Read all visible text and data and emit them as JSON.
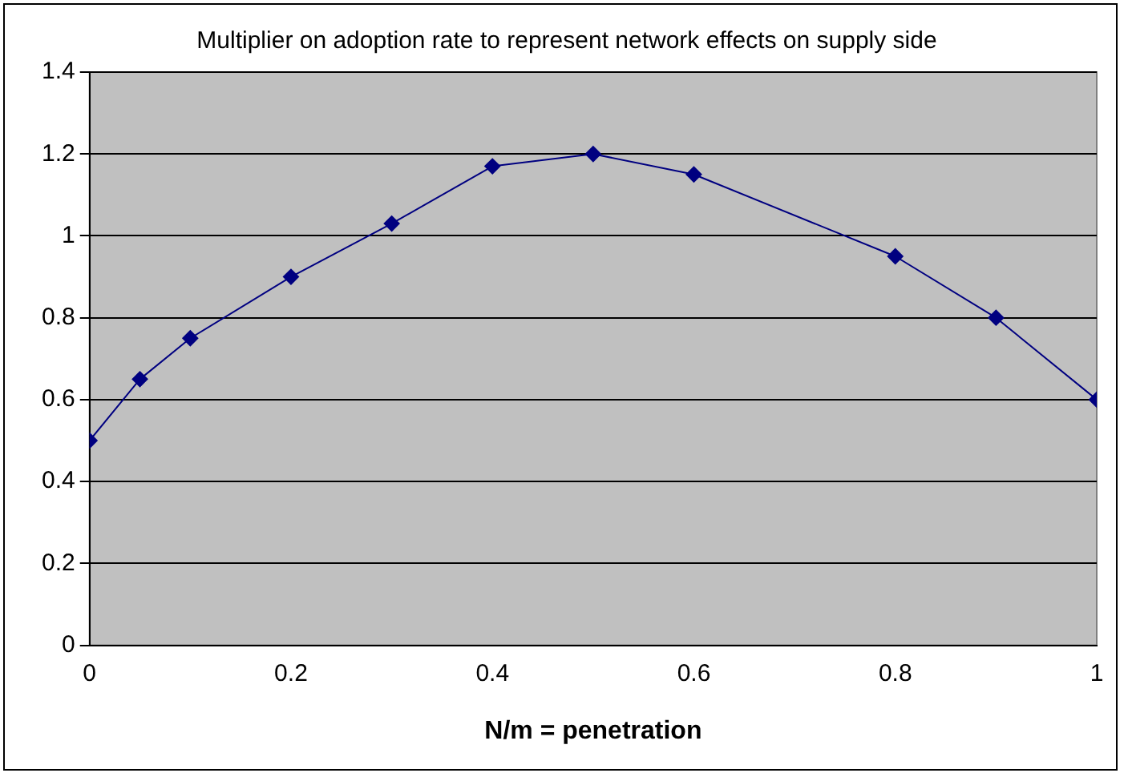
{
  "chart_data": {
    "type": "line",
    "title": "Multiplier on adoption rate to represent network effects on supply side",
    "xlabel": "N/m = penetration",
    "x": [
      0,
      0.05,
      0.1,
      0.2,
      0.3,
      0.4,
      0.5,
      0.6,
      0.8,
      0.9,
      1
    ],
    "series": [
      {
        "color": "#000080",
        "values": [
          0.5,
          0.65,
          0.75,
          0.9,
          1.03,
          1.17,
          1.2,
          1.15,
          0.95,
          0.8,
          0.6
        ]
      }
    ],
    "xlim": [
      0,
      1
    ],
    "xticks": [
      0,
      0.2,
      0.4,
      0.6,
      0.8,
      1
    ],
    "ylim": [
      0,
      1.4
    ],
    "yticks": [
      0,
      0.2,
      0.4,
      0.6,
      0.8,
      1,
      1.2,
      1.4
    ],
    "grid": "y",
    "legend": false,
    "marker": "diamond",
    "line_style": "solid"
  }
}
